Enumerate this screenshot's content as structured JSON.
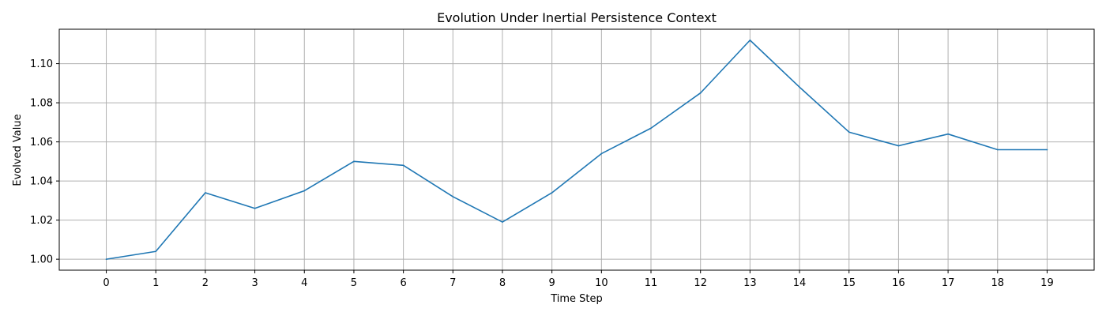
{
  "chart_data": {
    "type": "line",
    "title": "Evolution Under Inertial Persistence Context",
    "xlabel": "Time Step",
    "ylabel": "Evolved Value",
    "x": [
      0,
      1,
      2,
      3,
      4,
      5,
      6,
      7,
      8,
      9,
      10,
      11,
      12,
      13,
      14,
      15,
      16,
      17,
      18,
      19
    ],
    "series": [
      {
        "values": [
          1.0,
          1.004,
          1.034,
          1.026,
          1.035,
          1.05,
          1.048,
          1.032,
          1.019,
          1.034,
          1.054,
          1.067,
          1.085,
          1.112,
          1.088,
          1.065,
          1.058,
          1.064,
          1.056,
          1.056
        ],
        "color": "#1f77b4"
      }
    ],
    "xlim": [
      -0.95,
      19.95
    ],
    "ylim": [
      0.9944,
      1.1176
    ],
    "x_ticks": [
      "0",
      "1",
      "2",
      "3",
      "4",
      "5",
      "6",
      "7",
      "8",
      "9",
      "10",
      "11",
      "12",
      "13",
      "14",
      "15",
      "16",
      "17",
      "18",
      "19"
    ],
    "y_ticks": [
      {
        "value": 1.0,
        "label": "1.00"
      },
      {
        "value": 1.02,
        "label": "1.02"
      },
      {
        "value": 1.04,
        "label": "1.04"
      },
      {
        "value": 1.06,
        "label": "1.06"
      },
      {
        "value": 1.08,
        "label": "1.08"
      },
      {
        "value": 1.1,
        "label": "1.10"
      }
    ],
    "grid": true,
    "grid_color": "#b0b0b0"
  }
}
